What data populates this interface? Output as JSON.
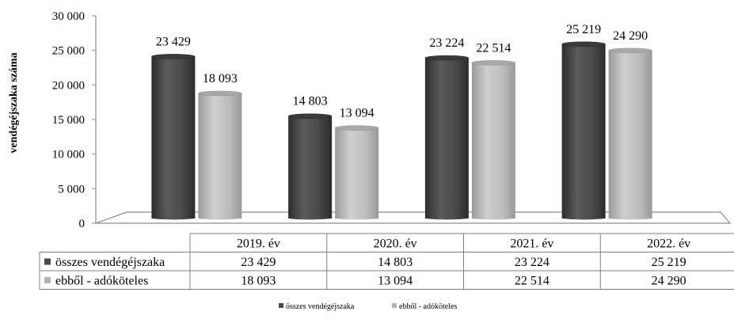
{
  "chart_data": {
    "type": "bar",
    "title": "",
    "xlabel": "",
    "ylabel": "vendégéjszaka száma",
    "ylim": [
      0,
      30000
    ],
    "yticks": [
      0,
      5000,
      10000,
      15000,
      20000,
      25000,
      30000
    ],
    "ytick_labels": [
      "0",
      "5 000",
      "10 000",
      "15 000",
      "20 000",
      "25 000",
      "30 000"
    ],
    "categories": [
      "2019. év",
      "2020. év",
      "2021. év",
      "2022. év"
    ],
    "series": [
      {
        "name": "összes vendégéjszaka",
        "values": [
          23429,
          14803,
          23224,
          25219
        ],
        "labels": [
          "23 429",
          "14 803",
          "23 224",
          "25 219"
        ],
        "color": "#4a4a4a"
      },
      {
        "name": "ebből - adóköteles",
        "values": [
          18093,
          13094,
          22514,
          24290
        ],
        "labels": [
          "18 093",
          "13 094",
          "22 514",
          "24 290"
        ],
        "color": "#b3b3b3"
      }
    ],
    "data_table": true,
    "legend_position": "bottom",
    "grid": false
  }
}
